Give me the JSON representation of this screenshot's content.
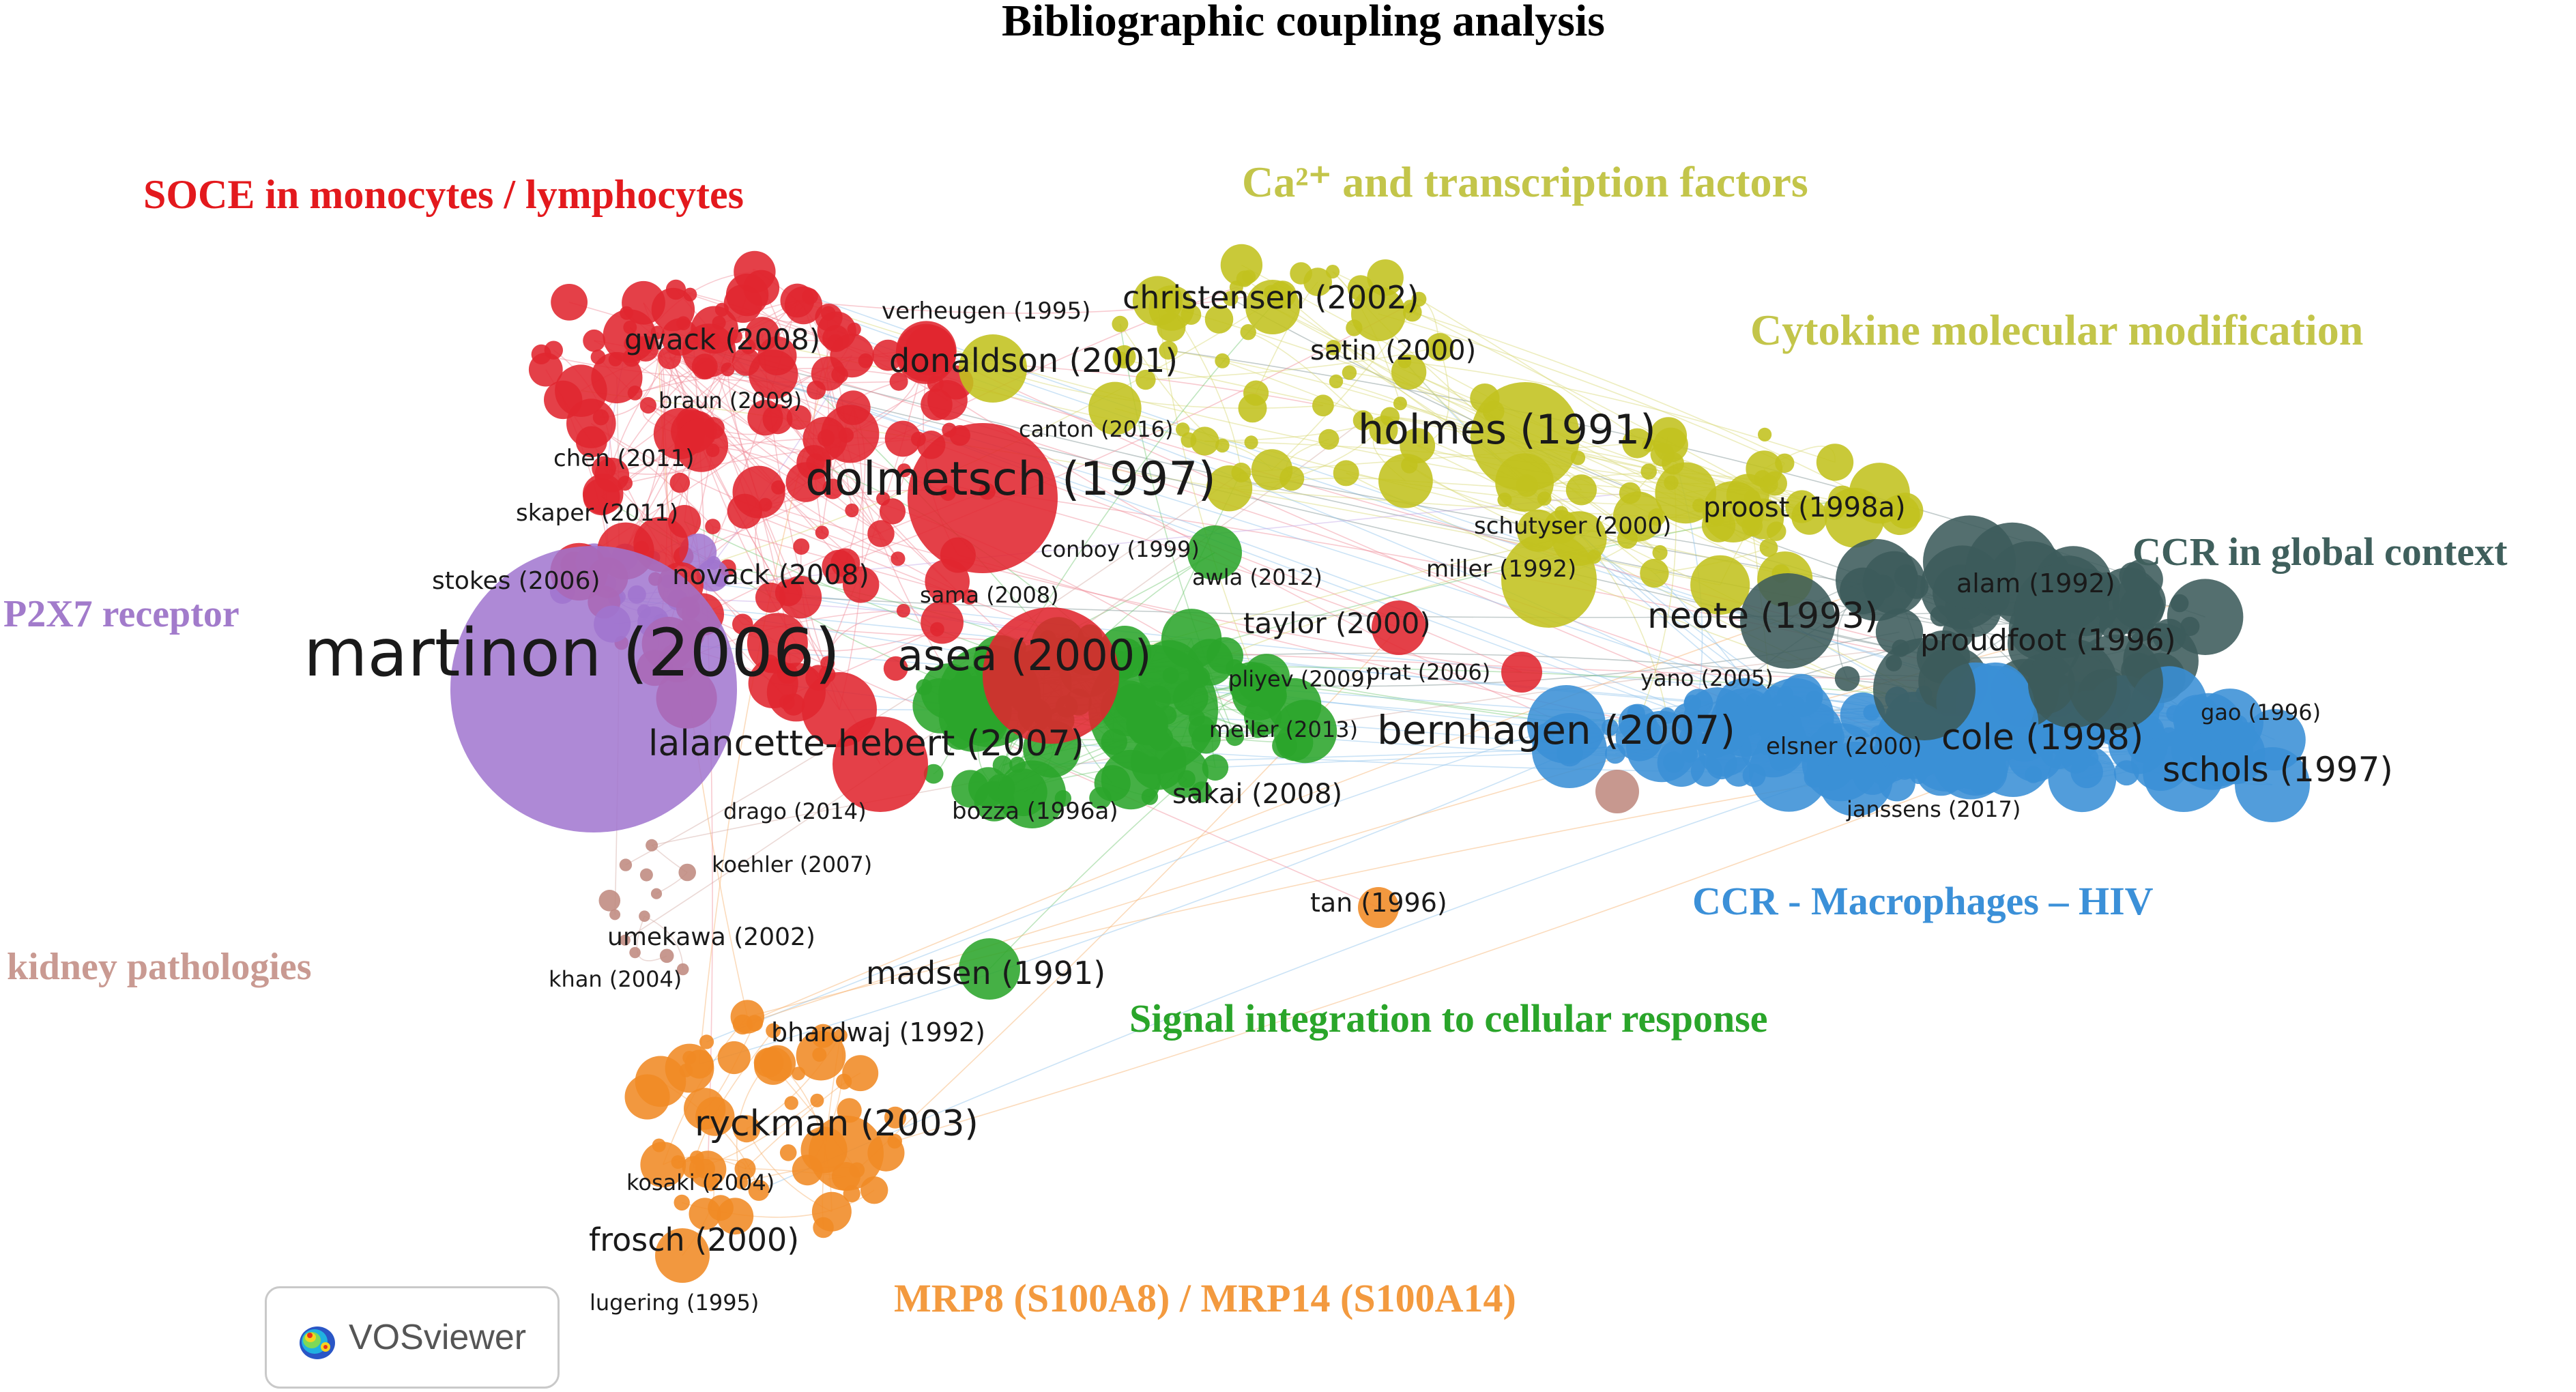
{
  "title": "Bibliographic coupling analysis",
  "colors": {
    "red": "#e0262f",
    "purple": "#a074cf",
    "yellow": "#c2c21e",
    "green": "#2ba52b",
    "blue": "#3a8fd6",
    "darkslate": "#3c5b5b",
    "orange": "#f08a24",
    "brown": "#bf8a80"
  },
  "cluster_labels": [
    {
      "key": "red",
      "text": "SOCE in monocytes / lymphocytes",
      "color": "#e3191d"
    },
    {
      "key": "yellow",
      "text": "Ca²⁺ and transcription factors",
      "color": "#c3c54a"
    },
    {
      "key": "yellow2",
      "text": "Cytokine molecular modification",
      "color": "#c3c54a"
    },
    {
      "key": "darkslate",
      "text": "CCR in  global context",
      "color": "#3f5f5c"
    },
    {
      "key": "purple",
      "text": "P2X7 receptor",
      "color": "#a27bcb"
    },
    {
      "key": "blue",
      "text": "CCR - Macrophages – HIV",
      "color": "#3b90d8"
    },
    {
      "key": "green",
      "text": "Signal integration to cellular response",
      "color": "#2aa52a"
    },
    {
      "key": "brown",
      "text": "kidney pathologies",
      "color": "#c99a92"
    },
    {
      "key": "orange",
      "text": "MRP8 (S100A8) / MRP14 (S100A14)",
      "color": "#f39a3f"
    }
  ],
  "node_labels": [
    "verheugen (1995)",
    "christensen (2002)",
    "gwack (2008)",
    "satin (2000)",
    "donaldson (2001)",
    "braun (2009)",
    "canton (2016)",
    "holmes (1991)",
    "chen (2011)",
    "dolmetsch (1997)",
    "skaper (2011)",
    "schutyser (2000)",
    "proost (1998a)",
    "conboy (1999)",
    "miller (1992)",
    "novack (2008)",
    "awla (2012)",
    "stokes (2006)",
    "sama (2008)",
    "alam (1992)",
    "neote (1993)",
    "taylor (2000)",
    "martinon (2006)",
    "asea (2000)",
    "proudfoot (1996)",
    "pliyev (2009)",
    "prat (2006)",
    "yano (2005)",
    "gao (1996)",
    "meiler (2013)",
    "bernhagen (2007)",
    "lalancette-hebert (2007)",
    "elsner (2000)",
    "cole (1998)",
    "schols (1997)",
    "sakai (2008)",
    "bozza (1996a)",
    "drago (2014)",
    "janssens (2017)",
    "koehler (2007)",
    "tan (1996)",
    "umekawa (2002)",
    "khan (2004)",
    "madsen (1991)",
    "bhardwaj (1992)",
    "ryckman (2003)",
    "kosaki (2004)",
    "frosch (2000)",
    "lugering (1995)"
  ],
  "legend_badge": {
    "text": "VOSviewer",
    "icon": "vosviewer-heatmap-icon"
  }
}
